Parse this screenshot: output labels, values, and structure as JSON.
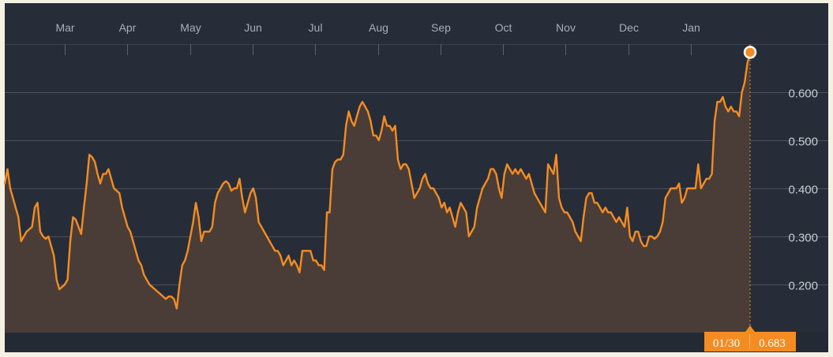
{
  "chart_data": {
    "type": "area",
    "months": [
      "Mar",
      "Apr",
      "May",
      "Jun",
      "Jul",
      "Aug",
      "Sep",
      "Oct",
      "Nov",
      "Dec",
      "Jan"
    ],
    "y_ticks": [
      0.2,
      0.3,
      0.4,
      0.5,
      0.6
    ],
    "y_tick_labels": [
      "0.200",
      "0.300",
      "0.400",
      "0.500",
      "0.600"
    ],
    "ylim": [
      0.1,
      0.7
    ],
    "grid": true,
    "colors": {
      "line": "#f48c22",
      "fill": "#4a3d38",
      "background": "#262d38",
      "axis_band": "#232a34"
    },
    "tooltip": {
      "date": "01/30",
      "value": "0.683"
    },
    "series": [
      {
        "values": [
          0.41,
          0.44,
          0.4,
          0.38,
          0.36,
          0.34,
          0.29,
          0.3,
          0.31,
          0.315,
          0.32,
          0.36,
          0.37,
          0.31,
          0.3,
          0.295,
          0.3,
          0.28,
          0.26,
          0.21,
          0.19,
          0.195,
          0.2,
          0.21,
          0.29,
          0.34,
          0.335,
          0.32,
          0.305,
          0.36,
          0.41,
          0.47,
          0.465,
          0.455,
          0.43,
          0.41,
          0.43,
          0.43,
          0.44,
          0.42,
          0.4,
          0.395,
          0.39,
          0.36,
          0.34,
          0.32,
          0.31,
          0.29,
          0.27,
          0.25,
          0.24,
          0.22,
          0.21,
          0.2,
          0.195,
          0.19,
          0.185,
          0.18,
          0.175,
          0.17,
          0.175,
          0.175,
          0.17,
          0.15,
          0.2,
          0.24,
          0.25,
          0.27,
          0.3,
          0.33,
          0.37,
          0.34,
          0.29,
          0.31,
          0.31,
          0.31,
          0.32,
          0.37,
          0.39,
          0.4,
          0.41,
          0.415,
          0.41,
          0.395,
          0.4,
          0.4,
          0.42,
          0.38,
          0.35,
          0.37,
          0.39,
          0.4,
          0.38,
          0.33,
          0.32,
          0.31,
          0.3,
          0.29,
          0.28,
          0.27,
          0.27,
          0.26,
          0.24,
          0.25,
          0.26,
          0.24,
          0.25,
          0.24,
          0.225,
          0.27,
          0.27,
          0.27,
          0.27,
          0.25,
          0.25,
          0.24,
          0.24,
          0.23,
          0.35,
          0.35,
          0.44,
          0.455,
          0.46,
          0.46,
          0.47,
          0.53,
          0.56,
          0.54,
          0.53,
          0.55,
          0.57,
          0.58,
          0.57,
          0.56,
          0.54,
          0.51,
          0.51,
          0.5,
          0.52,
          0.55,
          0.53,
          0.53,
          0.52,
          0.53,
          0.46,
          0.44,
          0.45,
          0.45,
          0.44,
          0.41,
          0.38,
          0.39,
          0.4,
          0.42,
          0.43,
          0.41,
          0.4,
          0.4,
          0.39,
          0.38,
          0.36,
          0.37,
          0.35,
          0.36,
          0.34,
          0.32,
          0.35,
          0.37,
          0.36,
          0.35,
          0.3,
          0.31,
          0.32,
          0.36,
          0.38,
          0.4,
          0.41,
          0.42,
          0.44,
          0.44,
          0.43,
          0.4,
          0.38,
          0.43,
          0.45,
          0.44,
          0.43,
          0.44,
          0.43,
          0.44,
          0.43,
          0.42,
          0.43,
          0.41,
          0.39,
          0.38,
          0.37,
          0.36,
          0.35,
          0.45,
          0.44,
          0.43,
          0.47,
          0.38,
          0.36,
          0.35,
          0.35,
          0.34,
          0.33,
          0.31,
          0.3,
          0.29,
          0.34,
          0.38,
          0.39,
          0.39,
          0.37,
          0.37,
          0.36,
          0.35,
          0.36,
          0.35,
          0.35,
          0.34,
          0.33,
          0.34,
          0.33,
          0.32,
          0.36,
          0.3,
          0.29,
          0.31,
          0.31,
          0.29,
          0.28,
          0.28,
          0.3,
          0.3,
          0.295,
          0.3,
          0.31,
          0.33,
          0.38,
          0.39,
          0.4,
          0.4,
          0.4,
          0.41,
          0.37,
          0.38,
          0.4,
          0.4,
          0.4,
          0.4,
          0.45,
          0.4,
          0.41,
          0.42,
          0.42,
          0.43,
          0.54,
          0.58,
          0.58,
          0.59,
          0.57,
          0.56,
          0.57,
          0.56,
          0.56,
          0.55,
          0.6,
          0.62,
          0.66,
          0.683
        ]
      }
    ]
  }
}
